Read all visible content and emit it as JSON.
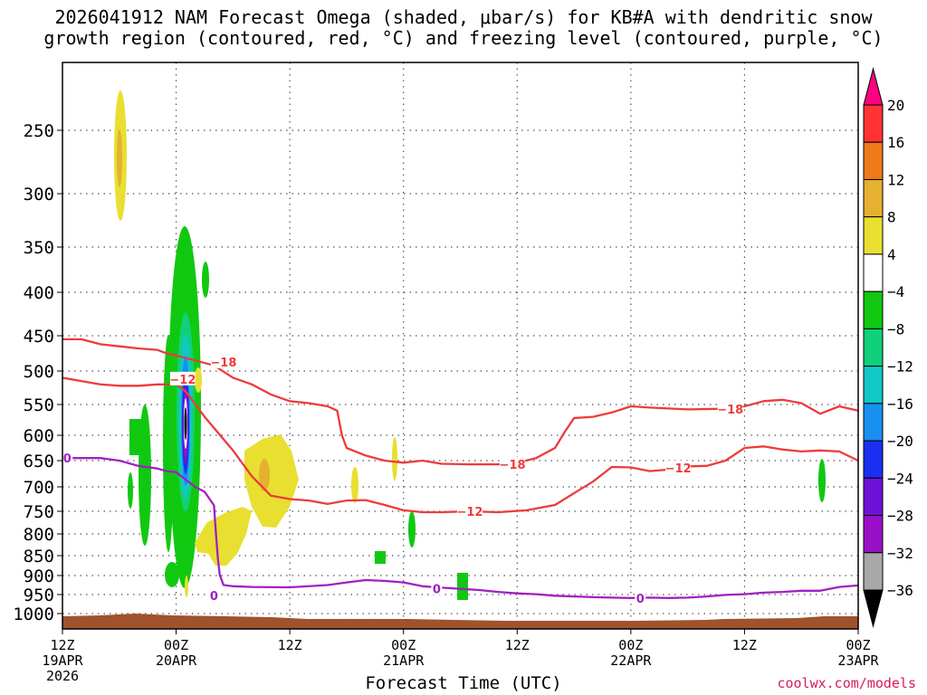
{
  "title_line1": "2026041912 NAM Forecast Omega (shaded, μbar/s) for KB#A with dendritic snow",
  "title_line2": "growth region (contoured, red, °C) and freezing level (contoured, purple, °C)",
  "credit": "coolwx.com/models",
  "chart_data": {
    "type": "heatmap",
    "title": "2026041912 NAM Forecast Omega (shaded, μbar/s) for KB#A with dendritic snow growth region (contoured, red, °C) and freezing level (contoured, purple, °C)",
    "xlabel": "Forecast Time (UTC)",
    "ylabel": "",
    "x_hours_range": [
      0,
      84
    ],
    "y_levels_hpa": [
      250,
      300,
      350,
      400,
      450,
      500,
      550,
      600,
      650,
      700,
      750,
      800,
      850,
      900,
      950,
      1000
    ],
    "x_ticks": [
      {
        "hour": 0,
        "lines": [
          "12Z",
          "19APR",
          "2026"
        ]
      },
      {
        "hour": 12,
        "lines": [
          "00Z",
          "20APR"
        ]
      },
      {
        "hour": 24,
        "lines": [
          "12Z"
        ]
      },
      {
        "hour": 36,
        "lines": [
          "00Z",
          "21APR"
        ]
      },
      {
        "hour": 48,
        "lines": [
          "12Z"
        ]
      },
      {
        "hour": 60,
        "lines": [
          "00Z",
          "22APR"
        ]
      },
      {
        "hour": 72,
        "lines": [
          "12Z"
        ]
      },
      {
        "hour": 84,
        "lines": [
          "00Z",
          "23APR"
        ]
      }
    ],
    "colorbar": {
      "labels": [
        "20",
        "16",
        "12",
        "8",
        "4",
        "−4",
        "−8",
        "−12",
        "−16",
        "−20",
        "−24",
        "−28",
        "−32",
        "−36"
      ],
      "colors": [
        "#ff0080",
        "#ff3333",
        "#f07a1a",
        "#e6b030",
        "#e8df30",
        "#ffffff",
        "#11c811",
        "#10d07a",
        "#10c8c8",
        "#1890f0",
        "#1a30f0",
        "#6f10d8",
        "#9a10c8",
        "#a8a8a8",
        "#000000"
      ]
    },
    "series": [
      {
        "name": "-18 °C isotherm",
        "color": "#ee3b3b",
        "label": "−18",
        "points": [
          [
            0,
            455
          ],
          [
            2,
            455
          ],
          [
            4,
            462
          ],
          [
            6,
            465
          ],
          [
            8,
            468
          ],
          [
            10,
            470
          ],
          [
            11,
            475
          ],
          [
            12,
            478
          ],
          [
            14,
            485
          ],
          [
            16,
            492
          ],
          [
            18,
            510
          ],
          [
            20,
            520
          ],
          [
            22,
            535
          ],
          [
            24,
            545
          ],
          [
            26,
            548
          ],
          [
            28,
            553
          ],
          [
            29,
            560
          ],
          [
            29.5,
            600
          ],
          [
            30,
            625
          ],
          [
            32,
            640
          ],
          [
            34,
            650
          ],
          [
            36,
            654
          ],
          [
            38,
            650
          ],
          [
            40,
            656
          ],
          [
            43,
            657
          ],
          [
            46,
            657
          ],
          [
            48,
            654
          ],
          [
            50,
            645
          ],
          [
            52,
            625
          ],
          [
            53,
            595
          ],
          [
            54,
            572
          ],
          [
            56,
            570
          ],
          [
            58,
            563
          ],
          [
            60,
            553
          ],
          [
            62,
            555
          ],
          [
            66,
            558
          ],
          [
            69,
            557
          ],
          [
            72,
            553
          ],
          [
            74,
            545
          ],
          [
            76,
            543
          ],
          [
            78,
            548
          ],
          [
            80,
            565
          ],
          [
            82,
            553
          ],
          [
            84,
            560
          ]
        ]
      },
      {
        "name": "-12 °C isotherm",
        "color": "#ee3b3b",
        "label": "−12",
        "points": [
          [
            0,
            510
          ],
          [
            2,
            515
          ],
          [
            4,
            520
          ],
          [
            6,
            522
          ],
          [
            8,
            522
          ],
          [
            10,
            520
          ],
          [
            12,
            520
          ],
          [
            13,
            530
          ],
          [
            15,
            570
          ],
          [
            18,
            630
          ],
          [
            20,
            680
          ],
          [
            22,
            718
          ],
          [
            24,
            725
          ],
          [
            26,
            728
          ],
          [
            28,
            735
          ],
          [
            30,
            728
          ],
          [
            32,
            727
          ],
          [
            34,
            737
          ],
          [
            36,
            748
          ],
          [
            38,
            752
          ],
          [
            40,
            752
          ],
          [
            43,
            750
          ],
          [
            46,
            752
          ],
          [
            49,
            748
          ],
          [
            52,
            737
          ],
          [
            54,
            713
          ],
          [
            56,
            690
          ],
          [
            58,
            662
          ],
          [
            60,
            663
          ],
          [
            62,
            670
          ],
          [
            64,
            667
          ],
          [
            66,
            661
          ],
          [
            68,
            660
          ],
          [
            70,
            650
          ],
          [
            72,
            625
          ],
          [
            74,
            622
          ],
          [
            76,
            628
          ],
          [
            78,
            632
          ],
          [
            80,
            630
          ],
          [
            82,
            632
          ],
          [
            84,
            650
          ]
        ]
      },
      {
        "name": "0 °C freezing level",
        "color": "#a020c0",
        "label": "0",
        "points": [
          [
            0,
            645
          ],
          [
            4,
            645
          ],
          [
            6,
            650
          ],
          [
            8,
            660
          ],
          [
            10,
            665
          ],
          [
            11,
            670
          ],
          [
            12,
            672
          ],
          [
            14,
            700
          ],
          [
            15,
            710
          ],
          [
            16,
            738
          ],
          [
            16.2,
            798
          ],
          [
            16.4,
            855
          ],
          [
            16.6,
            898
          ],
          [
            17,
            925
          ],
          [
            18,
            928
          ],
          [
            20,
            930
          ],
          [
            24,
            931
          ],
          [
            28,
            925
          ],
          [
            30,
            918
          ],
          [
            32,
            912
          ],
          [
            34,
            914
          ],
          [
            36,
            918
          ],
          [
            38,
            928
          ],
          [
            40,
            932
          ],
          [
            42,
            935
          ],
          [
            44,
            938
          ],
          [
            46,
            943
          ],
          [
            48,
            947
          ],
          [
            50,
            949
          ],
          [
            52,
            953
          ],
          [
            54,
            955
          ],
          [
            56,
            957
          ],
          [
            58,
            958
          ],
          [
            60,
            959
          ],
          [
            62,
            958
          ],
          [
            64,
            959
          ],
          [
            66,
            958
          ],
          [
            68,
            955
          ],
          [
            70,
            951
          ],
          [
            72,
            949
          ],
          [
            74,
            945
          ],
          [
            76,
            943
          ],
          [
            78,
            940
          ],
          [
            80,
            940
          ],
          [
            82,
            930
          ],
          [
            84,
            926
          ]
        ]
      }
    ],
    "contour_labels": [
      {
        "text": "−18",
        "hour": 17,
        "level": 487
      },
      {
        "text": "−12",
        "hour": 12.7,
        "level": 512
      },
      {
        "text": "−18",
        "hour": 47.5,
        "level": 657
      },
      {
        "text": "−12",
        "hour": 43,
        "level": 750
      },
      {
        "text": "−18",
        "hour": 70.5,
        "level": 557
      },
      {
        "text": "−12",
        "hour": 65,
        "level": 664
      },
      {
        "text": "0",
        "hour": 0.5,
        "level": 645
      },
      {
        "text": "0",
        "hour": 16,
        "level": 952
      },
      {
        "text": "0",
        "hour": 39.5,
        "level": 934
      },
      {
        "text": "0",
        "hour": 61,
        "level": 959
      }
    ]
  }
}
